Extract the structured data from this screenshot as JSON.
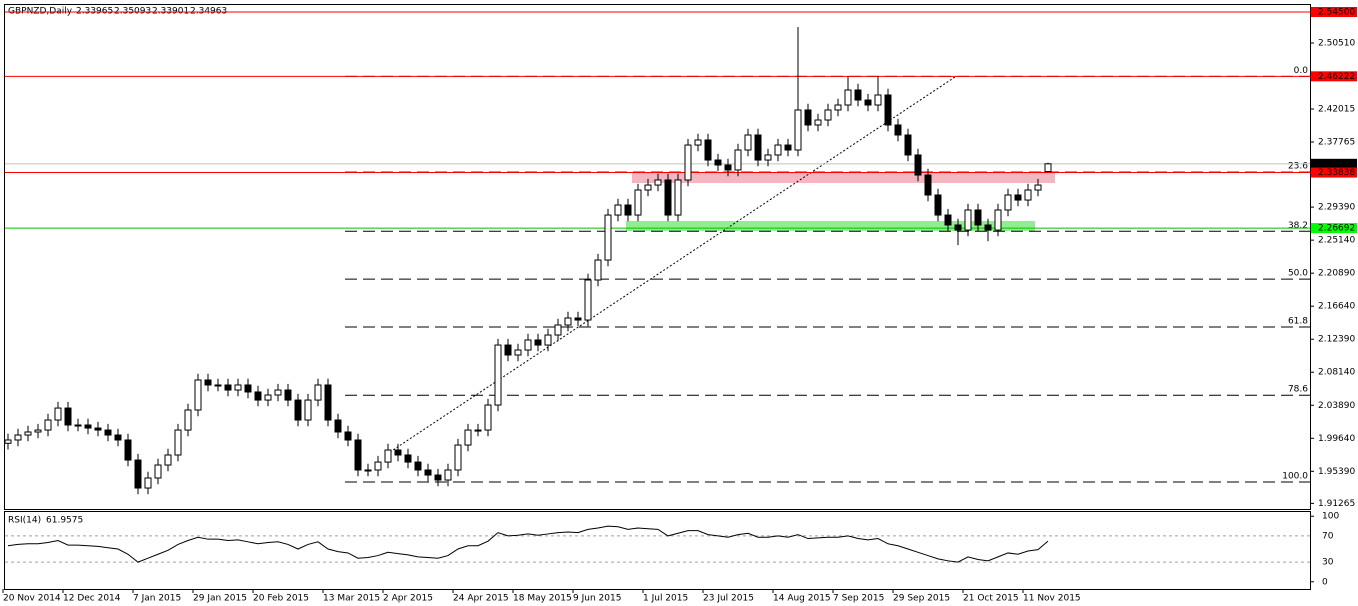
{
  "chart_data": {
    "type": "candlestick",
    "title": "GBPNZD,Daily",
    "categories": [
      "20 Nov 2014",
      null,
      null,
      null,
      null,
      null,
      "12 Dec 2014",
      null,
      null,
      null,
      null,
      null,
      null,
      "7 Jan 2015",
      null,
      null,
      null,
      null,
      null,
      "29 Jan 2015",
      null,
      null,
      null,
      null,
      null,
      "20 Feb 2015",
      null,
      null,
      null,
      null,
      null,
      null,
      "13 Mar 2015",
      null,
      null,
      null,
      null,
      null,
      "2 Apr 2015",
      null,
      null,
      null,
      null,
      null,
      null,
      "24 Apr 2015",
      null,
      null,
      null,
      null,
      null,
      "18 May 2015",
      null,
      null,
      null,
      null,
      null,
      "9 Jun 2015",
      null,
      null,
      null,
      null,
      null,
      null,
      "1 Jul 2015",
      null,
      null,
      null,
      null,
      null,
      "23 Jul 2015",
      null,
      null,
      null,
      null,
      null,
      null,
      "14 Aug 2015",
      null,
      null,
      null,
      null,
      null,
      "7 Sep 2015",
      null,
      null,
      null,
      null,
      null,
      "29 Sep 2015",
      null,
      null,
      null,
      null,
      null,
      null,
      "21 Oct 2015",
      null,
      null,
      null,
      null,
      null,
      "11 Nov 2015",
      null,
      null
    ],
    "open": [
      1.99,
      1.9942,
      2.0006,
      2.0045,
      2.007,
      2.0199,
      2.0353,
      2.0135,
      2.0135,
      2.0096,
      2.007,
      2.0006,
      1.9942,
      1.9684,
      1.9324,
      1.9453,
      1.962,
      1.9749,
      2.007,
      2.0328,
      2.0714,
      2.065,
      2.065,
      2.0585,
      2.065,
      2.056,
      2.0456,
      2.0521,
      2.0585,
      2.0456,
      2.0199,
      2.0456,
      2.065,
      2.0199,
      2.0045,
      1.9942,
      1.9556,
      1.9556,
      1.9658,
      1.9813,
      1.9749,
      1.9658,
      1.9556,
      1.9491,
      1.9427,
      1.9556,
      1.9877,
      2.007,
      2.007,
      2.0392,
      2.1164,
      2.1036,
      2.11,
      2.1229,
      2.1164,
      2.1293,
      2.1422,
      2.1512,
      2.1486,
      2.2001,
      2.2258,
      2.2837,
      2.2966,
      2.2837,
      2.3159,
      2.3223,
      2.3288,
      2.2837,
      2.3288,
      2.3738,
      2.3803,
      2.3545,
      2.3481,
      2.3417,
      2.3674,
      2.3867,
      2.3545,
      2.361,
      2.3738,
      2.3674,
      2.4189,
      2.3996,
      2.406,
      2.4189,
      2.4253,
      2.4446,
      2.4317,
      2.4253,
      2.4382,
      2.3996,
      2.3867,
      2.361,
      2.3352,
      2.3095,
      2.2837,
      2.2709,
      2.2644,
      2.2902,
      2.2709,
      2.2644,
      2.2902,
      2.3095,
      2.303,
      2.3159,
      2.33965
    ],
    "high": [
      2.0022,
      2.0086,
      2.0125,
      2.015,
      2.0279,
      2.0433,
      2.0433,
      2.0215,
      2.0215,
      2.0176,
      2.015,
      2.0086,
      2.0022,
      1.9764,
      1.9533,
      1.97,
      1.9829,
      2.015,
      2.0408,
      2.0794,
      2.0794,
      2.073,
      2.073,
      2.073,
      2.073,
      2.064,
      2.0601,
      2.0665,
      2.0665,
      2.0536,
      2.0536,
      2.073,
      2.073,
      2.0279,
      2.0125,
      2.0022,
      1.9636,
      1.9738,
      1.9893,
      1.9893,
      1.9829,
      1.9738,
      1.9636,
      1.9571,
      1.9636,
      1.9957,
      2.015,
      2.015,
      2.0472,
      2.1244,
      2.1244,
      2.118,
      2.1309,
      2.1309,
      2.1373,
      2.1502,
      2.1592,
      2.1592,
      2.2081,
      2.2338,
      2.2917,
      2.3046,
      2.3046,
      2.3239,
      2.3303,
      2.3368,
      2.3368,
      2.3368,
      2.3818,
      2.3883,
      2.3883,
      2.3625,
      2.3561,
      2.3754,
      2.3947,
      2.3947,
      2.369,
      2.3818,
      2.3818,
      2.5257,
      2.4269,
      2.414,
      2.4269,
      2.4333,
      2.4622,
      2.4526,
      2.4397,
      2.4622,
      2.4462,
      2.4076,
      2.3947,
      2.369,
      2.3432,
      2.3175,
      2.2917,
      2.2789,
      2.2982,
      2.2982,
      2.2789,
      2.2982,
      2.3175,
      2.3175,
      2.3239,
      2.3303,
      2.35093
    ],
    "low": [
      1.982,
      1.9862,
      1.9926,
      1.9965,
      1.999,
      2.0119,
      2.0055,
      2.0055,
      2.0016,
      1.999,
      1.9926,
      1.9862,
      1.9604,
      1.9244,
      1.9244,
      1.9373,
      1.954,
      1.9669,
      1.999,
      2.0248,
      2.057,
      2.057,
      2.0505,
      2.0505,
      2.048,
      2.0376,
      2.0376,
      2.0441,
      2.0376,
      2.0119,
      2.0119,
      2.0376,
      2.0119,
      1.9965,
      1.9862,
      1.9476,
      1.9476,
      1.9476,
      1.9578,
      1.9669,
      1.9578,
      1.9476,
      1.9411,
      1.9347,
      1.9347,
      1.9476,
      1.9797,
      1.999,
      1.999,
      2.0312,
      2.0956,
      2.0956,
      2.102,
      2.1084,
      2.1084,
      2.1213,
      2.1342,
      2.1406,
      2.1406,
      2.1921,
      2.2178,
      2.2757,
      2.2757,
      2.2757,
      2.3079,
      2.3143,
      2.2757,
      2.2757,
      2.3208,
      2.3658,
      2.3465,
      2.3401,
      2.3337,
      2.3337,
      2.3594,
      2.3465,
      2.3465,
      2.353,
      2.3594,
      2.3594,
      2.3916,
      2.3916,
      2.398,
      2.4109,
      2.4173,
      2.4237,
      2.4173,
      2.4173,
      2.3916,
      2.3787,
      2.353,
      2.3272,
      2.3015,
      2.2757,
      2.2629,
      2.245,
      2.2564,
      2.2629,
      2.25,
      2.2564,
      2.2822,
      2.295,
      2.295,
      2.3079,
      2.33901
    ],
    "close": [
      1.9942,
      2.0006,
      2.0045,
      2.007,
      2.0199,
      2.0353,
      2.0135,
      2.0135,
      2.0096,
      2.007,
      2.0006,
      1.9942,
      1.9684,
      1.9324,
      1.9453,
      1.962,
      1.9749,
      2.007,
      2.0328,
      2.0714,
      2.065,
      2.065,
      2.0585,
      2.065,
      2.056,
      2.0456,
      2.0521,
      2.0585,
      2.0456,
      2.0199,
      2.0456,
      2.065,
      2.0199,
      2.0045,
      1.9942,
      1.9556,
      1.9556,
      1.9658,
      1.9813,
      1.9749,
      1.9658,
      1.9556,
      1.9491,
      1.9427,
      1.9556,
      1.9877,
      2.007,
      2.007,
      2.0392,
      2.1164,
      2.1036,
      2.11,
      2.1229,
      2.1164,
      2.1293,
      2.1422,
      2.1512,
      2.1486,
      2.2001,
      2.2258,
      2.2837,
      2.2966,
      2.2837,
      2.3159,
      2.3223,
      2.3288,
      2.2837,
      2.3288,
      2.3738,
      2.3803,
      2.3545,
      2.3481,
      2.3417,
      2.3674,
      2.3867,
      2.3545,
      2.361,
      2.3738,
      2.3674,
      2.4189,
      2.3996,
      2.406,
      2.4189,
      2.4253,
      2.4446,
      2.4317,
      2.4253,
      2.4382,
      2.3996,
      2.3867,
      2.361,
      2.3352,
      2.3095,
      2.2837,
      2.2709,
      2.2644,
      2.2902,
      2.2709,
      2.2644,
      2.2902,
      2.3095,
      2.303,
      2.3159,
      2.3223,
      2.34963
    ],
    "up_color": "#ffffff",
    "down_color": "#000000",
    "line_color": "#000000",
    "ylim": [
      1.9054,
      2.5553
    ],
    "yticks": [
      {
        "value": 2.5051,
        "label": "2.50510"
      },
      {
        "value": 2.42015,
        "label": "2.42015"
      },
      {
        "value": 2.37765,
        "label": "2.37765"
      },
      {
        "value": 2.2939,
        "label": "2.29390"
      },
      {
        "value": 2.2514,
        "label": "2.25140"
      },
      {
        "value": 2.2089,
        "label": "2.20890"
      },
      {
        "value": 2.1664,
        "label": "2.16640"
      },
      {
        "value": 2.1239,
        "label": "2.12390"
      },
      {
        "value": 2.0814,
        "label": "2.08140"
      },
      {
        "value": 2.0389,
        "label": "2.03890"
      },
      {
        "value": 1.9964,
        "label": "1.99640"
      },
      {
        "value": 1.9539,
        "label": "1.95390"
      },
      {
        "value": 1.91265,
        "label": "1.91265"
      }
    ],
    "hlines": [
      {
        "value": 2.545,
        "label": "2.54500",
        "color": "#ff0000",
        "box": "#ff0000"
      },
      {
        "value": 2.46222,
        "label": "2.46222",
        "color": "#ff0000",
        "box": "#ff0000"
      },
      {
        "value": 2.34963,
        "label": "2.34963",
        "color": "#c0c0c0",
        "box": "#000000"
      },
      {
        "value": 2.33838,
        "label": "2.33838",
        "color": "#ff0000",
        "box": "#ff0000"
      },
      {
        "value": 2.26692,
        "label": "2.26692",
        "color": "#00c000",
        "box": "#00ff00"
      }
    ],
    "fib": {
      "high": 2.46222,
      "low": 1.9401,
      "levels": [
        {
          "value": 0,
          "label": "0.0"
        },
        23.6,
        38.2,
        {
          "value": 50,
          "label": "50.0"
        },
        61.8,
        78.6,
        {
          "value": 100,
          "label": "100.0"
        }
      ]
    },
    "rsi": {
      "title": "RSI(14)",
      "values": [
        55,
        57,
        58,
        58,
        60,
        63,
        56,
        56,
        55,
        54,
        52,
        50,
        42,
        30,
        36,
        42,
        48,
        57,
        63,
        68,
        65,
        65,
        63,
        64,
        61,
        58,
        60,
        61,
        57,
        50,
        57,
        61,
        50,
        46,
        44,
        36,
        37,
        40,
        45,
        43,
        41,
        38,
        37,
        36,
        40,
        50,
        55,
        55,
        62,
        75,
        70,
        71,
        73,
        71,
        73,
        75,
        76,
        75,
        80,
        82,
        85,
        84,
        80,
        82,
        81,
        80,
        70,
        74,
        78,
        78,
        72,
        70,
        68,
        72,
        74,
        68,
        68,
        70,
        68,
        72,
        66,
        67,
        68,
        68,
        70,
        66,
        64,
        66,
        58,
        55,
        50,
        45,
        40,
        35,
        32,
        30,
        38,
        34,
        32,
        38,
        44,
        42,
        47,
        49,
        61.9575
      ],
      "ylim": [
        -11,
        108
      ],
      "yticks": [
        100,
        70,
        30,
        0
      ]
    }
  }
}
